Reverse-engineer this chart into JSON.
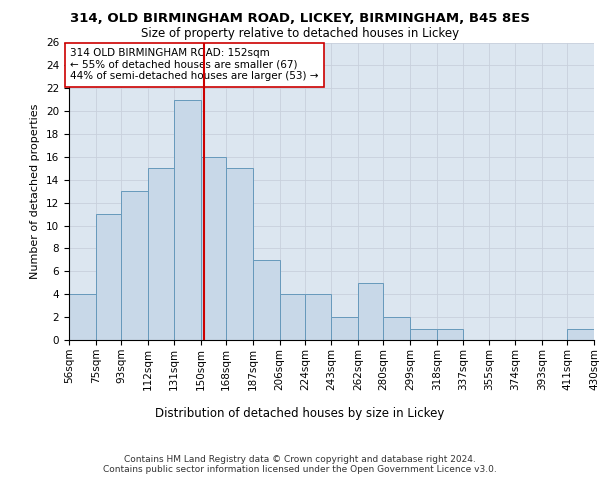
{
  "title1": "314, OLD BIRMINGHAM ROAD, LICKEY, BIRMINGHAM, B45 8ES",
  "title2": "Size of property relative to detached houses in Lickey",
  "xlabel": "Distribution of detached houses by size in Lickey",
  "ylabel": "Number of detached properties",
  "bar_color": "#c8d8e8",
  "bar_edge_color": "#6699bb",
  "grid_color": "#c8d0dc",
  "background_color": "#dce6f0",
  "vline_x": 152,
  "vline_color": "#cc0000",
  "annotation_text": "314 OLD BIRMINGHAM ROAD: 152sqm\n← 55% of detached houses are smaller (67)\n44% of semi-detached houses are larger (53) →",
  "footnote": "Contains HM Land Registry data © Crown copyright and database right 2024.\nContains public sector information licensed under the Open Government Licence v3.0.",
  "bin_edges": [
    56,
    75,
    93,
    112,
    131,
    150,
    168,
    187,
    206,
    224,
    243,
    262,
    280,
    299,
    318,
    337,
    355,
    374,
    393,
    411,
    430
  ],
  "bar_heights": [
    4,
    11,
    13,
    15,
    21,
    16,
    15,
    7,
    4,
    4,
    2,
    5,
    2,
    1,
    1,
    0,
    0,
    0,
    0,
    1
  ],
  "ylim": [
    0,
    26
  ],
  "yticks": [
    0,
    2,
    4,
    6,
    8,
    10,
    12,
    14,
    16,
    18,
    20,
    22,
    24,
    26
  ],
  "title1_fontsize": 9.5,
  "title2_fontsize": 8.5,
  "xlabel_fontsize": 8.5,
  "ylabel_fontsize": 8,
  "tick_fontsize": 7.5,
  "annotation_fontsize": 7.5,
  "footnote_fontsize": 6.5
}
